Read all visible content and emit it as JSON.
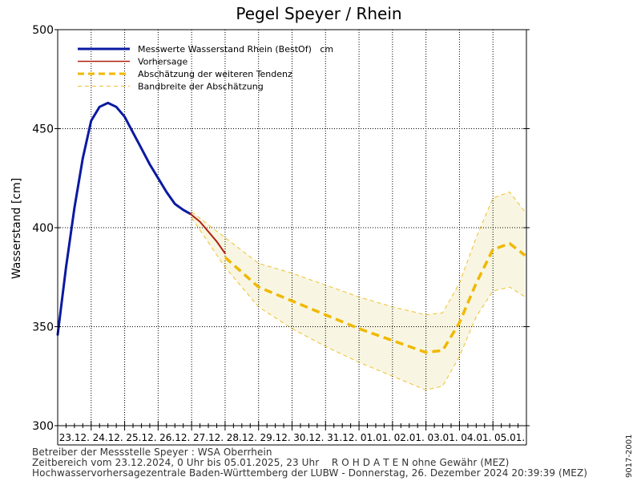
{
  "chart_data": {
    "type": "line",
    "title": "Pegel Speyer / Rhein",
    "ylabel": "Wasserstand [cm]",
    "xlabel": "",
    "ylim": [
      300,
      500
    ],
    "yticks": [
      300,
      350,
      400,
      450,
      500
    ],
    "xlim": [
      "2024-12-23 00:00",
      "2025-01-05 23:00"
    ],
    "categories": [
      "23.12.",
      "24.12.",
      "25.12.",
      "26.12.",
      "27.12.",
      "28.12.",
      "29.12.",
      "30.12.",
      "31.12.",
      "01.01.",
      "02.01.",
      "03.01.",
      "04.01.",
      "05.01."
    ],
    "grid": true,
    "legend_position": "top-left",
    "series": [
      {
        "name": "Messwerte Wasserstand Rhein (BestOf)   cm",
        "color": "#0a1aa0",
        "style": "solid-thick",
        "x": [
          "2024-12-23 00:00",
          "2024-12-23 06:00",
          "2024-12-23 12:00",
          "2024-12-23 18:00",
          "2024-12-24 00:00",
          "2024-12-24 06:00",
          "2024-12-24 12:00",
          "2024-12-24 18:00",
          "2024-12-25 00:00",
          "2024-12-25 06:00",
          "2024-12-25 12:00",
          "2024-12-25 18:00",
          "2024-12-26 00:00",
          "2024-12-26 06:00",
          "2024-12-26 12:00",
          "2024-12-26 18:00",
          "2024-12-26 23:00"
        ],
        "y": [
          346,
          380,
          410,
          435,
          454,
          461,
          463,
          461,
          456,
          448,
          440,
          432,
          425,
          418,
          412,
          409,
          407
        ]
      },
      {
        "name": "Vorhersage",
        "color": "#b02010",
        "style": "solid",
        "x": [
          "2024-12-26 23:00",
          "2024-12-27 06:00",
          "2024-12-27 12:00",
          "2024-12-27 18:00",
          "2024-12-28 00:00"
        ],
        "y": [
          407,
          403,
          398,
          393,
          387
        ]
      },
      {
        "name": "Abschätzung der weiteren Tendenz",
        "color": "#f0b800",
        "style": "dashed-thick",
        "x": [
          "2024-12-28 00:00",
          "2024-12-29 00:00",
          "2024-12-30 00:00",
          "2024-12-31 00:00",
          "2025-01-01 00:00",
          "2025-01-02 00:00",
          "2025-01-03 00:00",
          "2025-01-03 12:00",
          "2025-01-04 00:00",
          "2025-01-04 12:00",
          "2025-01-05 00:00",
          "2025-01-05 12:00",
          "2025-01-05 23:00"
        ],
        "y": [
          385,
          370,
          363,
          356,
          349,
          343,
          337,
          338,
          352,
          372,
          389,
          392,
          386
        ]
      },
      {
        "name": "Bandbreite der Abschätzung",
        "color": "#f0c030",
        "style": "dashed-thin",
        "x": [
          "2024-12-27 00:00",
          "2024-12-28 00:00",
          "2024-12-29 00:00",
          "2024-12-30 00:00",
          "2024-12-31 00:00",
          "2025-01-01 00:00",
          "2025-01-02 00:00",
          "2025-01-03 00:00",
          "2025-01-03 12:00",
          "2025-01-04 00:00",
          "2025-01-04 12:00",
          "2025-01-05 00:00",
          "2025-01-05 12:00",
          "2025-01-05 23:00"
        ],
        "upper": [
          408,
          395,
          382,
          377,
          371,
          365,
          360,
          356,
          357,
          372,
          395,
          415,
          418,
          408
        ],
        "lower": [
          405,
          380,
          360,
          349,
          340,
          332,
          325,
          318,
          320,
          335,
          355,
          368,
          370,
          365
        ]
      }
    ]
  },
  "footer": {
    "line1": "Betreiber der Messstelle Speyer : WSA Oberrhein",
    "line2": "Zeitbereich vom 23.12.2024, 0 Uhr bis 05.01.2025, 23 Uhr    R O H D A T E N ohne Gewähr (MEZ)",
    "line3": "Hochwasservorhersagezentrale Baden-Württemberg der LUBW - Donnerstag, 26. Dezember 2024 20:39:39 (MEZ)",
    "code": "9017-2001"
  }
}
